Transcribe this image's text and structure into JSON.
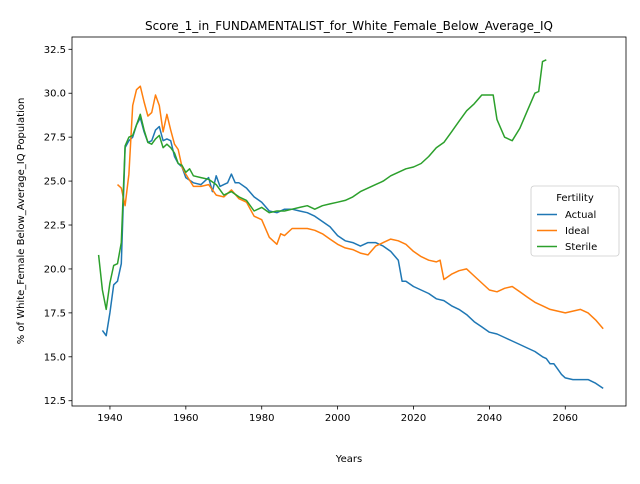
{
  "chart_data": {
    "type": "line",
    "title": "Score_1_in_FUNDAMENTALIST_for_White_Female_Below_Average_IQ",
    "xlabel": "Years",
    "ylabel": "% of White_Female Below_Average_IQ Population",
    "xlim": [
      1930,
      2076
    ],
    "ylim": [
      12.2,
      33.2
    ],
    "x_ticks": [
      1940,
      1960,
      1980,
      2000,
      2020,
      2040,
      2060
    ],
    "y_ticks": [
      12.5,
      15.0,
      17.5,
      20.0,
      22.5,
      25.0,
      27.5,
      30.0,
      32.5
    ],
    "x_tick_labels": [
      "1940",
      "1960",
      "1980",
      "2000",
      "2020",
      "2040",
      "2060"
    ],
    "y_tick_labels": [
      "12.5",
      "15.0",
      "17.5",
      "20.0",
      "22.5",
      "25.0",
      "27.5",
      "30.0",
      "32.5"
    ],
    "grid": false,
    "legend": {
      "title": "Fertility",
      "position": "center-right"
    },
    "series": [
      {
        "name": "Actual",
        "color": "#1f77b4",
        "x": [
          1938,
          1939,
          1940,
          1941,
          1942,
          1943,
          1944,
          1945,
          1946,
          1947,
          1948,
          1949,
          1950,
          1951,
          1952,
          1953,
          1954,
          1955,
          1956,
          1957,
          1958,
          1959,
          1960,
          1962,
          1964,
          1966,
          1967,
          1968,
          1969,
          1970,
          1971,
          1972,
          1973,
          1974,
          1976,
          1978,
          1980,
          1982,
          1984,
          1986,
          1988,
          1990,
          1992,
          1994,
          1996,
          1998,
          2000,
          2002,
          2004,
          2006,
          2008,
          2010,
          2012,
          2014,
          2016,
          2017,
          2018,
          2020,
          2022,
          2024,
          2026,
          2028,
          2030,
          2032,
          2034,
          2036,
          2038,
          2040,
          2042,
          2044,
          2046,
          2048,
          2050,
          2052,
          2054,
          2055,
          2056,
          2057,
          2058,
          2059,
          2060,
          2062,
          2064,
          2066,
          2068,
          2070
        ],
        "y": [
          16.5,
          16.2,
          17.5,
          19.1,
          19.3,
          20.3,
          26.9,
          27.3,
          27.5,
          28.2,
          28.6,
          27.8,
          27.2,
          27.3,
          27.9,
          28.1,
          27.3,
          27.4,
          27.3,
          26.4,
          26.0,
          25.8,
          25.2,
          24.9,
          24.8,
          25.2,
          24.4,
          25.3,
          24.7,
          24.8,
          24.9,
          25.4,
          24.9,
          24.9,
          24.6,
          24.1,
          23.8,
          23.3,
          23.2,
          23.4,
          23.4,
          23.3,
          23.2,
          23.0,
          22.7,
          22.4,
          21.9,
          21.6,
          21.5,
          21.3,
          21.5,
          21.5,
          21.3,
          21.0,
          20.5,
          19.3,
          19.3,
          19.0,
          18.8,
          18.6,
          18.3,
          18.2,
          17.9,
          17.7,
          17.4,
          17.0,
          16.7,
          16.4,
          16.3,
          16.1,
          15.9,
          15.7,
          15.5,
          15.3,
          15.0,
          14.9,
          14.6,
          14.6,
          14.3,
          14.0,
          13.8,
          13.7,
          13.7,
          13.7,
          13.5,
          13.2
        ]
      },
      {
        "name": "Ideal",
        "color": "#ff7f0e",
        "x": [
          1942,
          1943,
          1944,
          1945,
          1946,
          1947,
          1948,
          1949,
          1950,
          1951,
          1952,
          1953,
          1954,
          1955,
          1956,
          1957,
          1958,
          1959,
          1960,
          1962,
          1964,
          1966,
          1968,
          1970,
          1972,
          1974,
          1976,
          1978,
          1980,
          1982,
          1984,
          1985,
          1986,
          1988,
          1990,
          1992,
          1994,
          1996,
          1998,
          2000,
          2002,
          2004,
          2006,
          2008,
          2010,
          2012,
          2014,
          2016,
          2018,
          2020,
          2022,
          2024,
          2026,
          2027,
          2028,
          2030,
          2032,
          2034,
          2036,
          2038,
          2040,
          2042,
          2044,
          2046,
          2048,
          2050,
          2052,
          2054,
          2056,
          2058,
          2060,
          2062,
          2064,
          2066,
          2068,
          2070
        ],
        "y": [
          24.8,
          24.6,
          23.6,
          25.4,
          29.3,
          30.2,
          30.4,
          29.5,
          28.7,
          28.9,
          29.9,
          29.3,
          27.8,
          28.8,
          27.9,
          27.1,
          26.8,
          25.8,
          25.4,
          24.7,
          24.7,
          24.8,
          24.2,
          24.1,
          24.5,
          24.0,
          23.8,
          23.0,
          22.8,
          21.8,
          21.4,
          22.0,
          21.9,
          22.3,
          22.3,
          22.3,
          22.2,
          22.0,
          21.7,
          21.4,
          21.2,
          21.1,
          20.9,
          20.8,
          21.3,
          21.5,
          21.7,
          21.6,
          21.4,
          21.0,
          20.7,
          20.5,
          20.4,
          20.5,
          19.4,
          19.7,
          19.9,
          20.0,
          19.6,
          19.2,
          18.8,
          18.7,
          18.9,
          19.0,
          18.7,
          18.4,
          18.1,
          17.9,
          17.7,
          17.6,
          17.5,
          17.6,
          17.7,
          17.5,
          17.1,
          16.6
        ]
      },
      {
        "name": "Sterile",
        "color": "#2ca02c",
        "x": [
          1937,
          1938,
          1939,
          1940,
          1941,
          1942,
          1943,
          1944,
          1945,
          1946,
          1947,
          1948,
          1949,
          1950,
          1951,
          1952,
          1953,
          1954,
          1955,
          1956,
          1957,
          1958,
          1959,
          1960,
          1961,
          1962,
          1964,
          1966,
          1968,
          1970,
          1972,
          1974,
          1976,
          1978,
          1980,
          1982,
          1984,
          1986,
          1988,
          1990,
          1992,
          1994,
          1996,
          1998,
          2000,
          2002,
          2004,
          2006,
          2008,
          2010,
          2012,
          2014,
          2016,
          2018,
          2020,
          2022,
          2024,
          2026,
          2028,
          2030,
          2032,
          2034,
          2036,
          2038,
          2040,
          2041,
          2042,
          2044,
          2046,
          2048,
          2050,
          2052,
          2053,
          2054,
          2055
        ],
        "y": [
          20.8,
          18.8,
          17.7,
          19.2,
          20.2,
          20.3,
          21.5,
          27.0,
          27.5,
          27.6,
          28.2,
          28.8,
          27.9,
          27.2,
          27.1,
          27.4,
          27.6,
          26.9,
          27.1,
          26.9,
          26.6,
          26.0,
          25.9,
          25.5,
          25.7,
          25.3,
          25.2,
          25.1,
          24.8,
          24.2,
          24.4,
          24.1,
          23.9,
          23.3,
          23.5,
          23.2,
          23.3,
          23.3,
          23.4,
          23.5,
          23.6,
          23.4,
          23.6,
          23.7,
          23.8,
          23.9,
          24.1,
          24.4,
          24.6,
          24.8,
          25.0,
          25.3,
          25.5,
          25.7,
          25.8,
          26.0,
          26.4,
          26.9,
          27.2,
          27.8,
          28.4,
          29.0,
          29.4,
          29.9,
          29.9,
          29.9,
          28.5,
          27.5,
          27.3,
          28.0,
          29.0,
          30.0,
          30.1,
          31.8,
          31.9
        ]
      }
    ]
  }
}
